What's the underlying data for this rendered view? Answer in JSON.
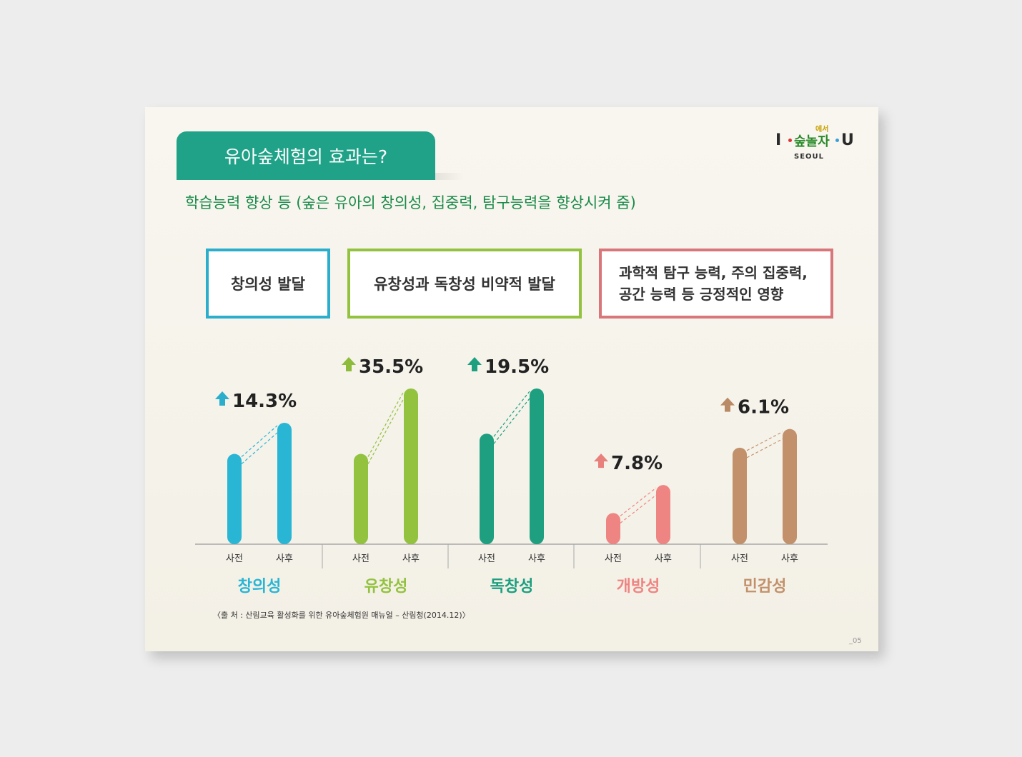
{
  "header": {
    "title": "유아숲체험의 효과는?",
    "subtitle": "학습능력 향상 등 (숲은 유아의 창의성, 집중력, 탐구능력을 향상시켜 줌)"
  },
  "logo": {
    "i": "I",
    "u": "U",
    "kor_top": "에서",
    "kor_main": "숲놀자",
    "city": "SEOUL"
  },
  "bubbles": [
    {
      "text": "창의성 발달",
      "color": "#2aaecb"
    },
    {
      "text": "유창성과 독창성 비약적 발달",
      "color": "#93c23f"
    },
    {
      "line1": "과학적 탐구 능력, 주의 집중력,",
      "line2": "공간 능력 등 긍정적인 영향",
      "color": "#d9767a"
    }
  ],
  "chart_data": {
    "type": "bar",
    "bar_labels": [
      "사전",
      "사후"
    ],
    "groups": [
      {
        "name": "창의성",
        "color": "#29b6d5",
        "arrow_color": "#2aaecb",
        "change": "14.3%",
        "pre": 0.58,
        "post": 0.78
      },
      {
        "name": "유창성",
        "color": "#93c23f",
        "arrow_color": "#8dbb3a",
        "change": "35.5%",
        "pre": 0.58,
        "post": 1.0
      },
      {
        "name": "독창성",
        "color": "#1d9f80",
        "arrow_color": "#1d9f80",
        "change": "19.5%",
        "pre": 0.71,
        "post": 1.0
      },
      {
        "name": "개방성",
        "color": "#ef8582",
        "arrow_color": "#e8807c",
        "change": "7.8%",
        "pre": 0.2,
        "post": 0.38
      },
      {
        "name": "민감성",
        "color": "#c2916b",
        "arrow_color": "#b98a65",
        "change": "6.1%",
        "pre": 0.62,
        "post": 0.74
      }
    ]
  },
  "footer": {
    "source": "〈출  처 : 산림교육 활성화를 위한 유아숲체험원 매뉴얼 – 산림청(2014.12)〉",
    "page": "_05"
  }
}
